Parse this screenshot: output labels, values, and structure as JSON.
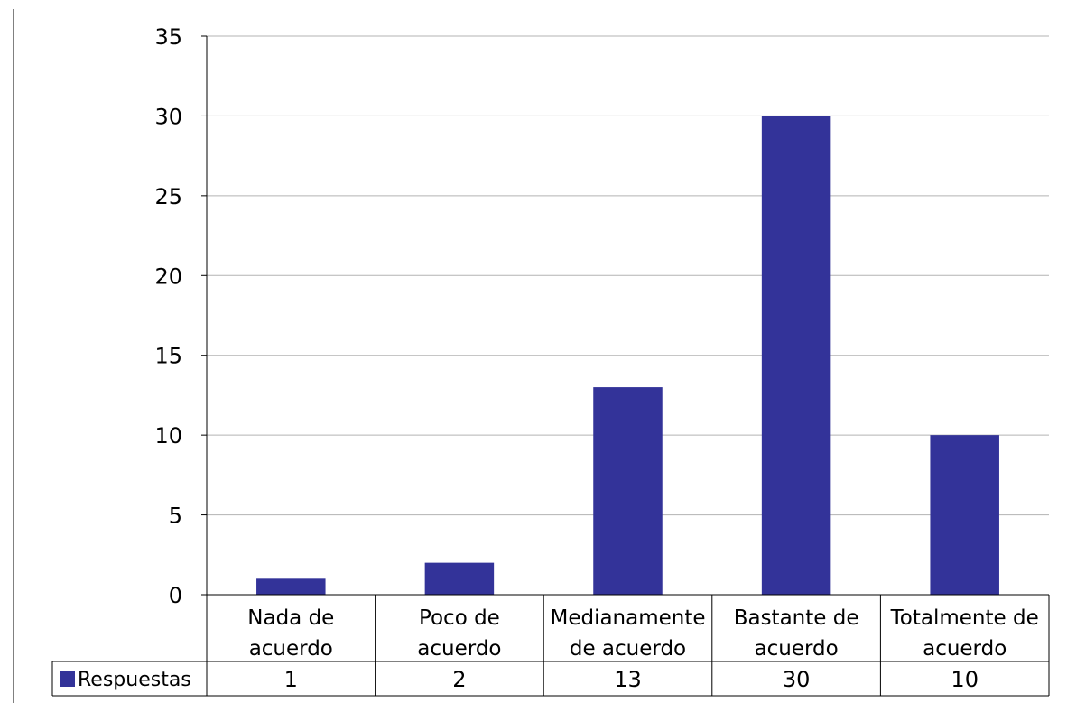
{
  "chart_data": {
    "type": "bar",
    "categories": [
      [
        "Nada de",
        "acuerdo"
      ],
      [
        "Poco de",
        "acuerdo"
      ],
      [
        "Medianamente",
        "de acuerdo"
      ],
      [
        "Bastante de",
        "acuerdo"
      ],
      [
        "Totalmente de",
        "acuerdo"
      ]
    ],
    "series": [
      {
        "name": "Respuestas",
        "values": [
          1,
          2,
          13,
          30,
          10
        ],
        "color": "#333399"
      }
    ],
    "ylim": [
      0,
      35
    ],
    "yticks": [
      0,
      5,
      10,
      15,
      20,
      25,
      30,
      35
    ],
    "grid": true,
    "legend": "data-table",
    "colors": {
      "bar": "#333399",
      "grid": "#b3b3b3",
      "axis": "#000000"
    }
  }
}
